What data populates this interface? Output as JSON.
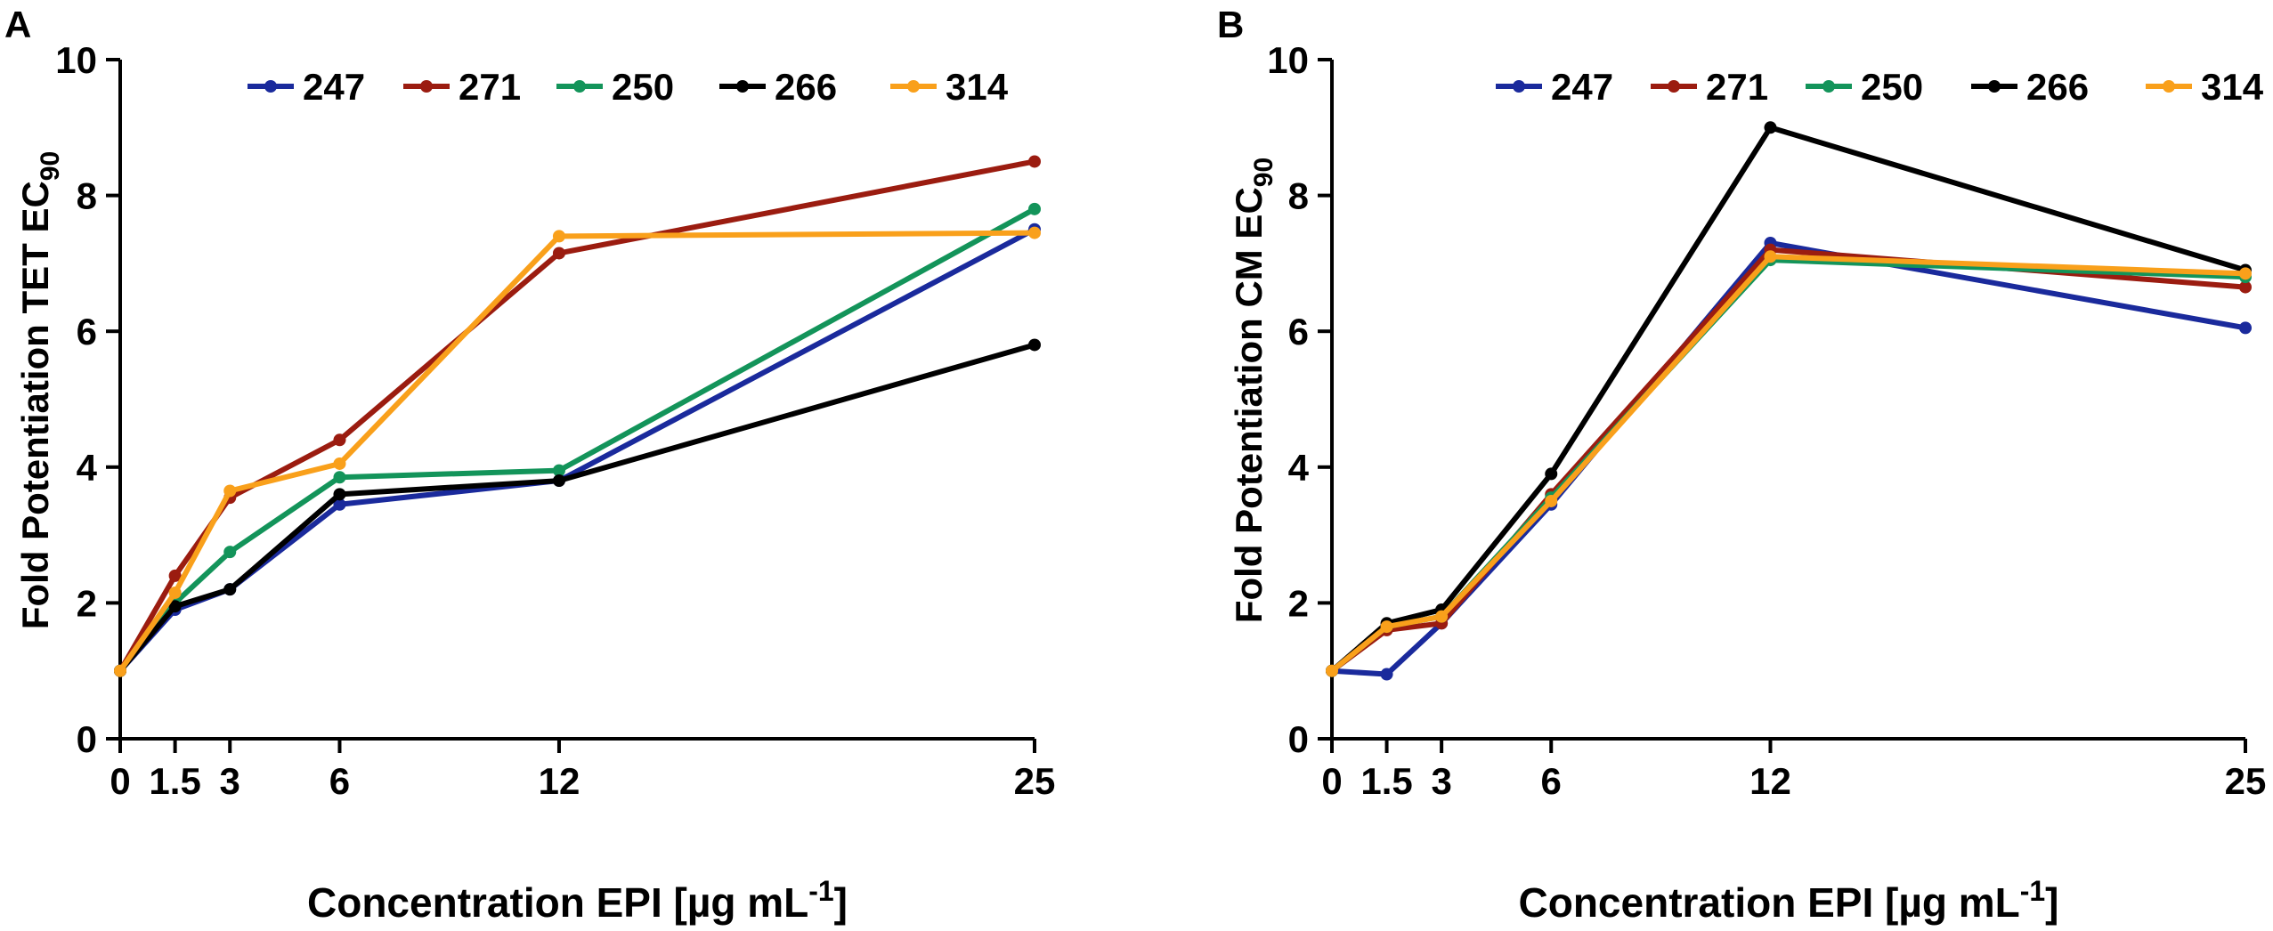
{
  "chart_data": [
    {
      "panel_label": "A",
      "type": "line",
      "ylabel": "Fold Potentiation TET EC",
      "ylabel_sub": "90",
      "xlabel": "Concentration EPI [µg mL",
      "xlabel_sup": "-1",
      "xlabel_close": "]",
      "x": [
        0,
        1.5,
        3,
        6,
        12,
        25
      ],
      "x_tick_labels": [
        "0",
        "1.5",
        "3",
        "6",
        "12",
        "25"
      ],
      "y_ticks": [
        0,
        2,
        4,
        6,
        8,
        10
      ],
      "y_tick_labels": [
        "0",
        "2",
        "4",
        "6",
        "8",
        "10"
      ],
      "ylim": [
        0,
        10
      ],
      "xlim": [
        0,
        25
      ],
      "grid": false,
      "legend_position": "top",
      "series": [
        {
          "name": "247",
          "color": "#1a2a9c",
          "values": [
            1.0,
            1.9,
            2.2,
            3.45,
            3.8,
            7.5
          ]
        },
        {
          "name": "271",
          "color": "#9b1c10",
          "values": [
            1.0,
            2.4,
            3.55,
            4.4,
            7.15,
            8.5
          ]
        },
        {
          "name": "250",
          "color": "#13945a",
          "values": [
            1.0,
            2.0,
            2.75,
            3.85,
            3.95,
            7.8
          ]
        },
        {
          "name": "266",
          "color": "#000000",
          "values": [
            1.0,
            1.95,
            2.2,
            3.6,
            3.8,
            5.8
          ]
        },
        {
          "name": "314",
          "color": "#f9a01b",
          "values": [
            1.0,
            2.15,
            3.65,
            4.05,
            7.4,
            7.45
          ]
        }
      ]
    },
    {
      "panel_label": "B",
      "type": "line",
      "ylabel": "Fold Potentiation CM EC",
      "ylabel_sub": "90",
      "xlabel": "Concentration EPI [µg mL",
      "xlabel_sup": "-1",
      "xlabel_close": "]",
      "x": [
        0,
        1.5,
        3,
        6,
        12,
        25
      ],
      "x_tick_labels": [
        "0",
        "1.5",
        "3",
        "6",
        "12",
        "25"
      ],
      "y_ticks": [
        0,
        2,
        4,
        6,
        8,
        10
      ],
      "y_tick_labels": [
        "0",
        "2",
        "4",
        "6",
        "8",
        "10"
      ],
      "ylim": [
        0,
        10
      ],
      "xlim": [
        0,
        25
      ],
      "grid": false,
      "legend_position": "top",
      "series": [
        {
          "name": "247",
          "color": "#1a2a9c",
          "values": [
            1.0,
            0.95,
            1.7,
            3.45,
            7.3,
            6.05
          ]
        },
        {
          "name": "271",
          "color": "#9b1c10",
          "values": [
            1.0,
            1.6,
            1.7,
            3.6,
            7.2,
            6.65
          ]
        },
        {
          "name": "250",
          "color": "#13945a",
          "values": [
            1.0,
            1.65,
            1.8,
            3.55,
            7.05,
            6.8
          ]
        },
        {
          "name": "266",
          "color": "#000000",
          "values": [
            1.0,
            1.7,
            1.9,
            3.9,
            9.0,
            6.9
          ]
        },
        {
          "name": "314",
          "color": "#f9a01b",
          "values": [
            1.0,
            1.65,
            1.8,
            3.5,
            7.1,
            6.85
          ]
        }
      ]
    }
  ]
}
